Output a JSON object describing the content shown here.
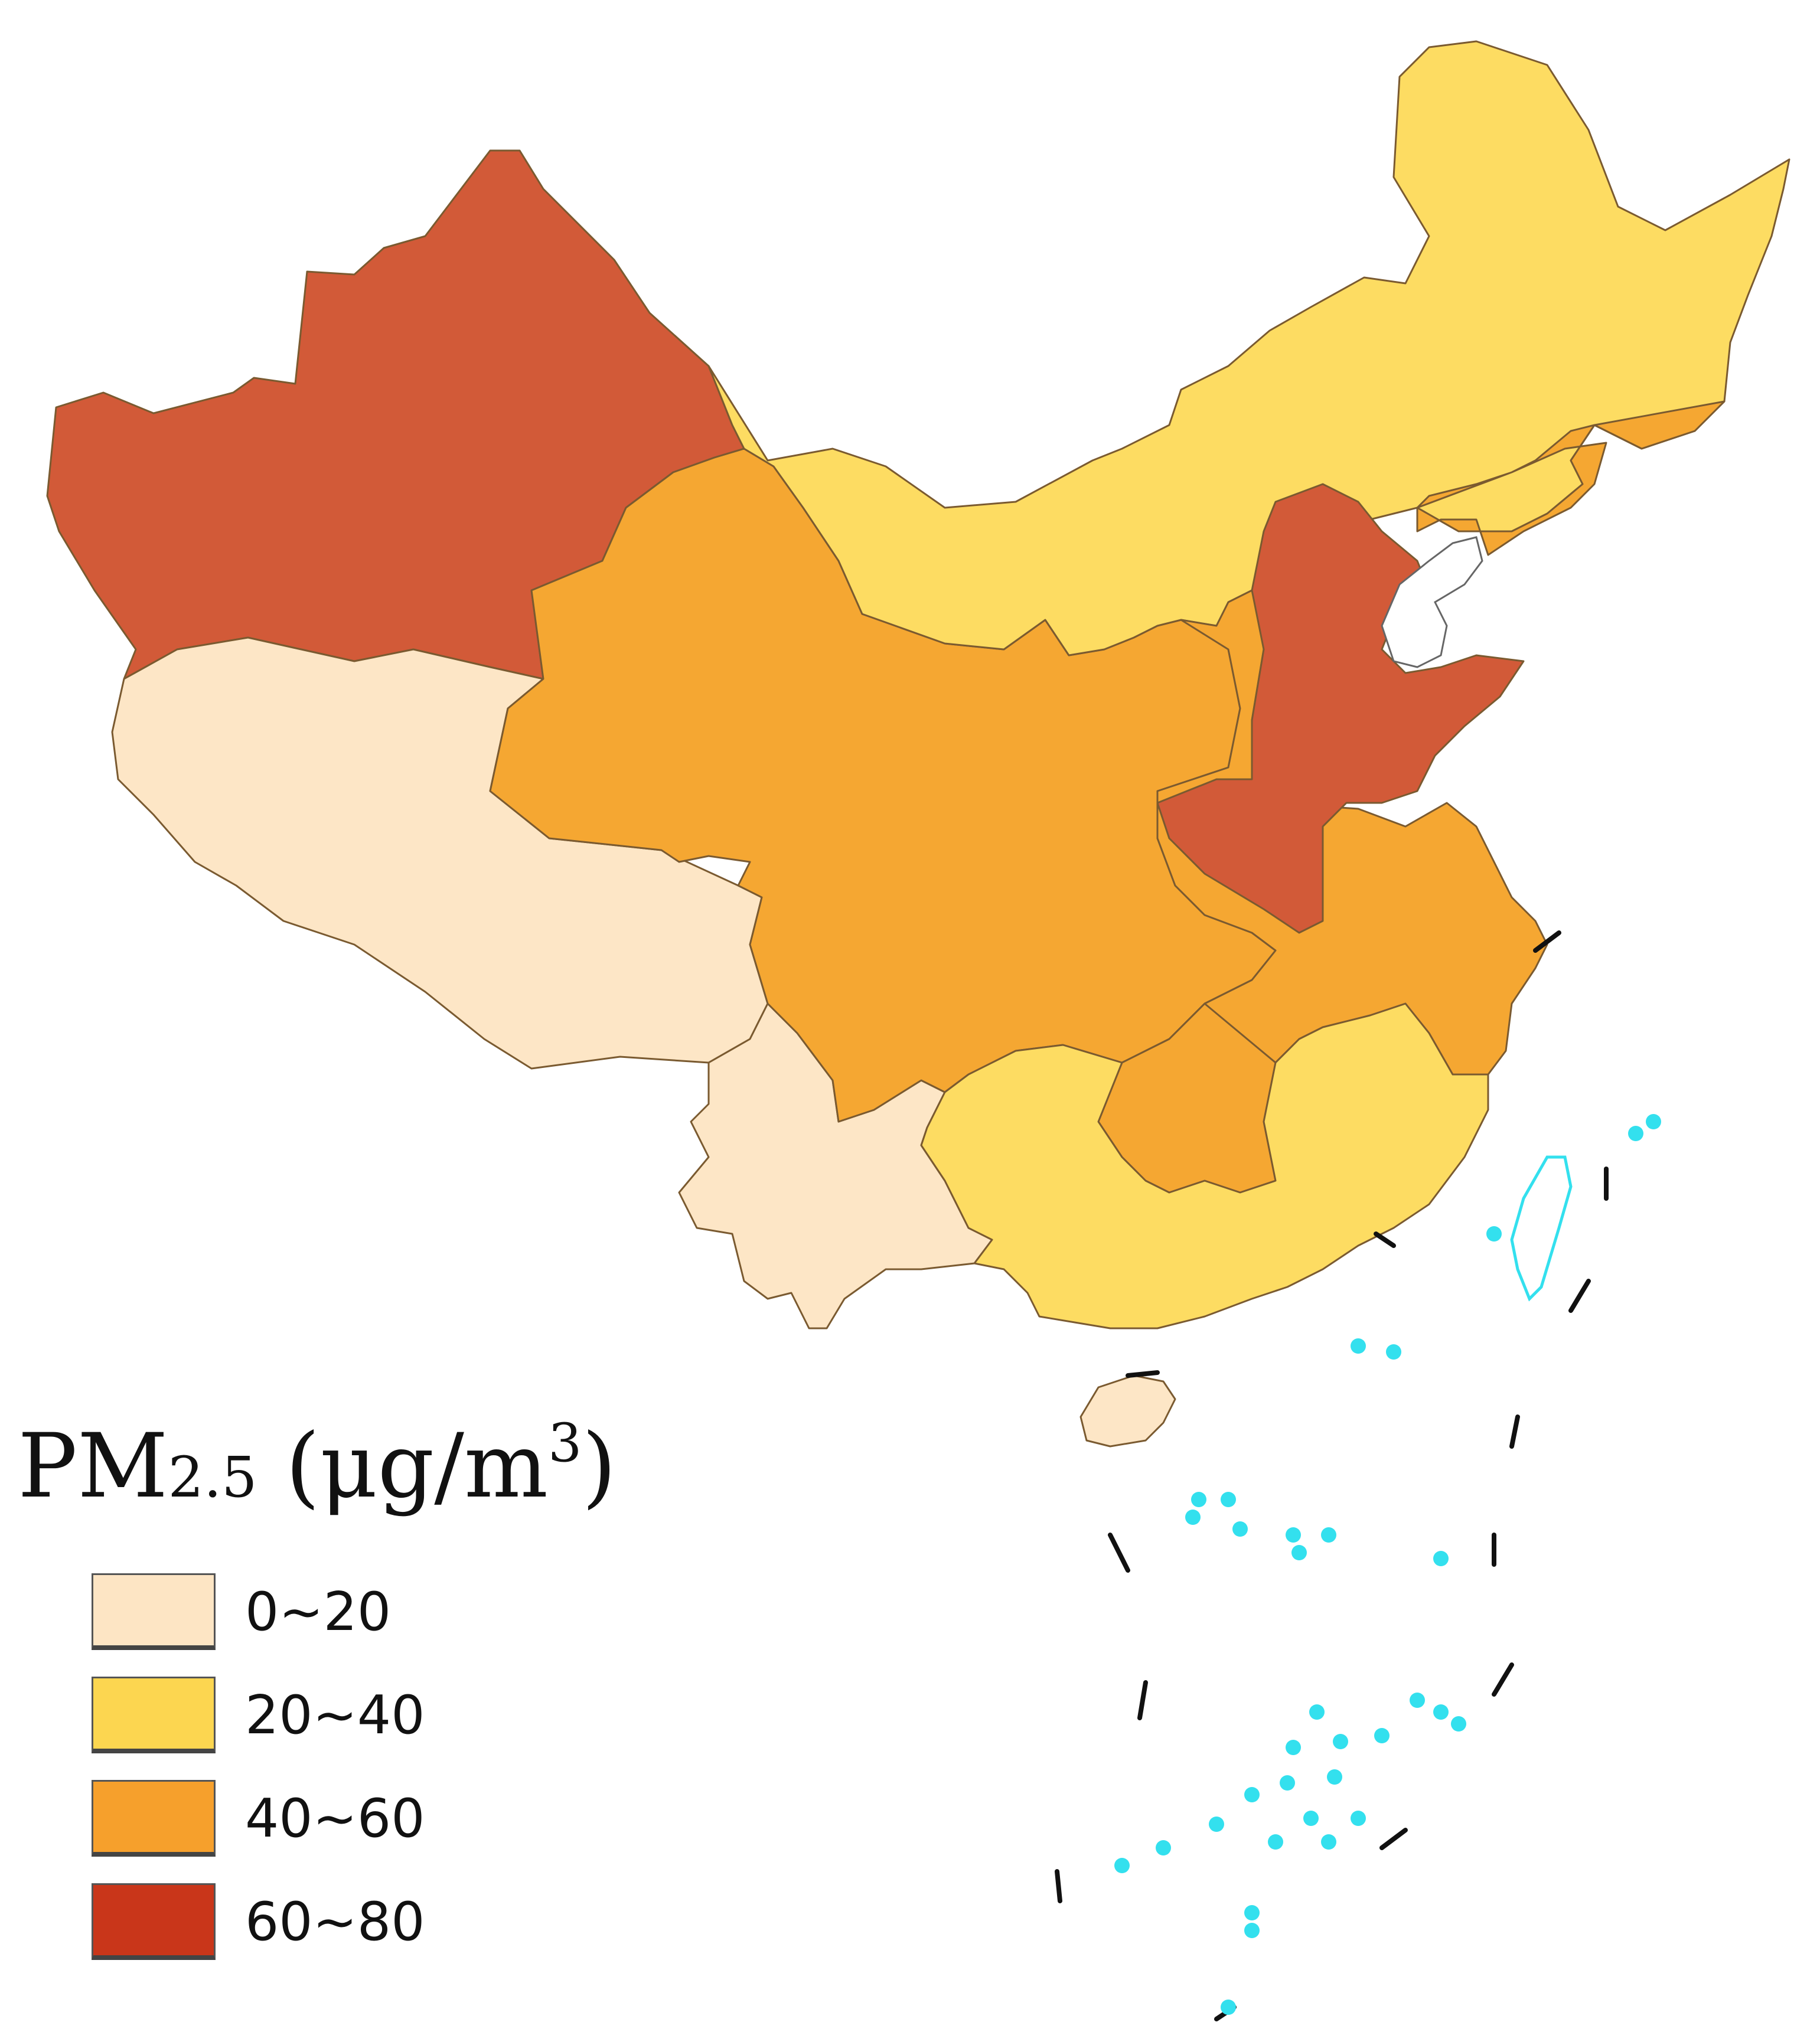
{
  "legend": {
    "title_prefix": "PM",
    "title_sub": "2.5",
    "title_unit_open": " (μg/m",
    "title_sup": "3",
    "title_unit_close": ")",
    "items": [
      {
        "label": "0~20",
        "color": "#fde5c4"
      },
      {
        "label": "20~40",
        "color": "#fcd650"
      },
      {
        "label": "40~60",
        "color": "#f6a02c"
      },
      {
        "label": "60~80",
        "color": "#c9361a"
      }
    ]
  },
  "map_colors": {
    "class_0_20": "#fde6c6",
    "class_20_40": "#fddc62",
    "class_40_60": "#f5a732",
    "class_60_80": "#d25a38",
    "islands": "#33e0ee",
    "border": "#111111"
  }
}
